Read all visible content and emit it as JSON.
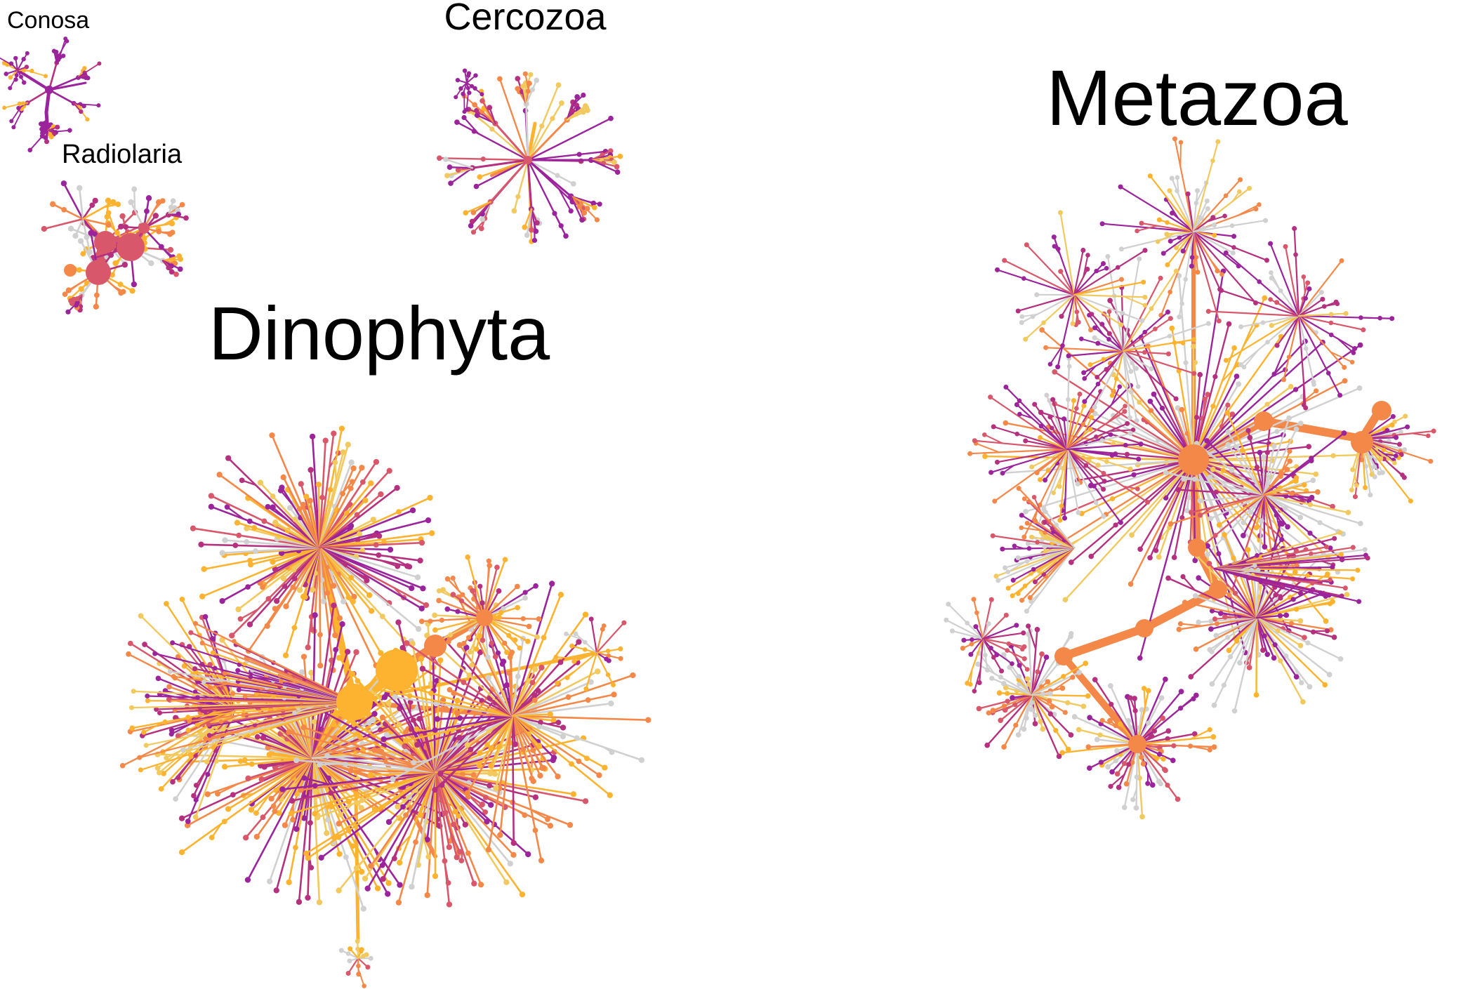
{
  "labels": {
    "conosa": "Conosa",
    "cercozoa": "Cercozoa",
    "radiolaria": "Radiolaria",
    "dinophyta": "Dinophyta",
    "metazoa": "Metazoa"
  },
  "colors": {
    "purple": "#9b239b",
    "magenta": "#b5307f",
    "pink": "#d8576b",
    "orange": "#f48849",
    "amber": "#fdb32f",
    "yellow": "#f1c95f",
    "gray": "#d0d0d0"
  }
}
